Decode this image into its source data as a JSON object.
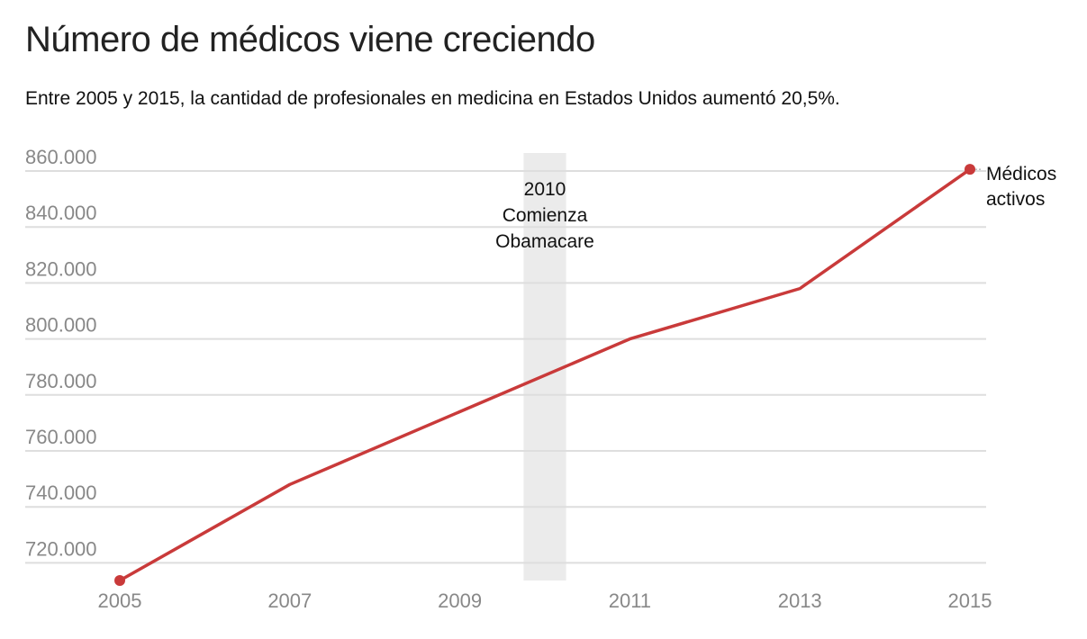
{
  "chart_data": {
    "type": "line",
    "title": "Número de médicos viene creciendo",
    "subtitle": "Entre 2005 y 2015, la cantidad de profesionales en medicina en Estados Unidos aumentó 20,5%.",
    "xlabel": "",
    "ylabel": "",
    "x_ticks": [
      "2005",
      "2007",
      "2009",
      "2011",
      "2013",
      "2015"
    ],
    "y_ticks": [
      "720.000",
      "740.000",
      "760.000",
      "780.000",
      "800.000",
      "820.000",
      "840.000",
      "860.000"
    ],
    "y_tick_values": [
      720000,
      740000,
      760000,
      780000,
      800000,
      820000,
      840000,
      860000
    ],
    "xlim": [
      2005,
      2015
    ],
    "ylim": [
      714000,
      866000
    ],
    "grid": true,
    "series": [
      {
        "name": "Médicos activos",
        "label_lines": [
          "Médicos",
          "activos"
        ],
        "color": "#c93a3a",
        "x": [
          2005,
          2007,
          2011,
          2013,
          2015
        ],
        "values": [
          713700,
          748000,
          800000,
          818000,
          860600
        ]
      }
    ],
    "annotation": {
      "range": [
        2009.75,
        2010.25
      ],
      "lines": [
        "2010",
        "Comienza",
        "Obamacare"
      ],
      "color": "#ebebeb"
    }
  }
}
